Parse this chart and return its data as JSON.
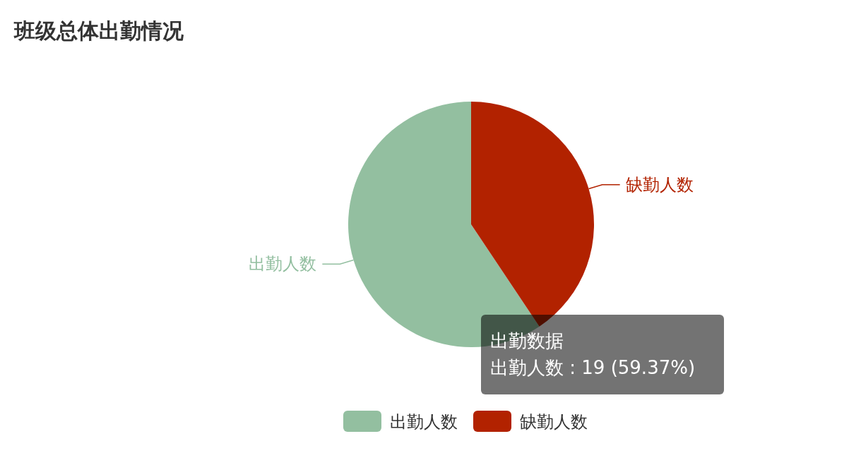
{
  "chart_data": {
    "type": "pie",
    "title": "班级总体出勤情况",
    "categories": [
      "出勤人数",
      "缺勤人数"
    ],
    "values": [
      59.37,
      40.63
    ],
    "colors": [
      "#93bfa0",
      "#b22200"
    ],
    "legend": "bottom",
    "annotations": [
      "出勤数据",
      "出勤人数 : 19 (59.37%)"
    ]
  }
}
